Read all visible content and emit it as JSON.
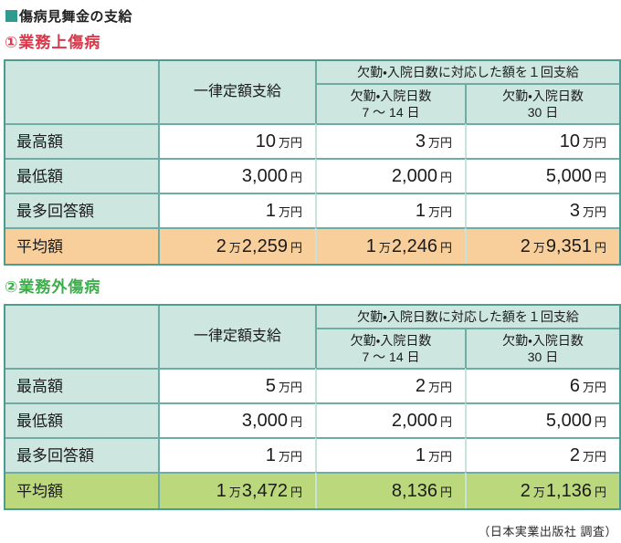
{
  "title": "傷病見舞金の支給",
  "footer": "（日本実業出版社 調査）",
  "colors": {
    "title_square": "#2f9a8e",
    "table_border_outer": "#4e9c90",
    "table_border_inner": "#6fada4",
    "table_border_pale": "#c8e2dc",
    "header_bg": "#cee6e0",
    "avg_row_table1": "#f8cf9b",
    "avg_row_table2": "#bcd87d",
    "heading1_color": "#d8384a",
    "heading2_color": "#3ead4b"
  },
  "tables": [
    {
      "id": "work-related",
      "heading": "①業務上傷病",
      "heading_color": "#d8384a",
      "avg_row_color": "#f8cf9b",
      "header": {
        "flat": "一律定額支給",
        "group": "欠勤・入院日数に対応した額を１回支給",
        "sub1_line1": "欠勤・入院日数",
        "sub1_line2": "7 〜 14 日",
        "sub2_line1": "欠勤・入院日数",
        "sub2_line2": "30 日"
      },
      "rows": [
        {
          "label": "最高額",
          "values": [
            "10万円",
            "3万円",
            "10万円"
          ]
        },
        {
          "label": "最低額",
          "values": [
            "3,000円",
            "2,000円",
            "5,000円"
          ]
        },
        {
          "label": "最多回答額",
          "values": [
            "1万円",
            "1万円",
            "3万円"
          ]
        },
        {
          "label": "平均額",
          "values": [
            "2万2,259円",
            "1万2,246円",
            "2万9,351円"
          ],
          "highlight": true
        }
      ]
    },
    {
      "id": "non-work-related",
      "heading": "②業務外傷病",
      "heading_color": "#3ead4b",
      "avg_row_color": "#bcd87d",
      "header": {
        "flat": "一律定額支給",
        "group": "欠勤・入院日数に対応した額を１回支給",
        "sub1_line1": "欠勤・入院日数",
        "sub1_line2": "7 〜 14 日",
        "sub2_line1": "欠勤・入院日数",
        "sub2_line2": "30 日"
      },
      "rows": [
        {
          "label": "最高額",
          "values": [
            "5万円",
            "2万円",
            "6万円"
          ]
        },
        {
          "label": "最低額",
          "values": [
            "3,000円",
            "2,000円",
            "5,000円"
          ]
        },
        {
          "label": "最多回答額",
          "values": [
            "1万円",
            "1万円",
            "2万円"
          ]
        },
        {
          "label": "平均額",
          "values": [
            "1万3,472円",
            "8,136円",
            "2万1,136円"
          ],
          "highlight": true
        }
      ]
    }
  ]
}
